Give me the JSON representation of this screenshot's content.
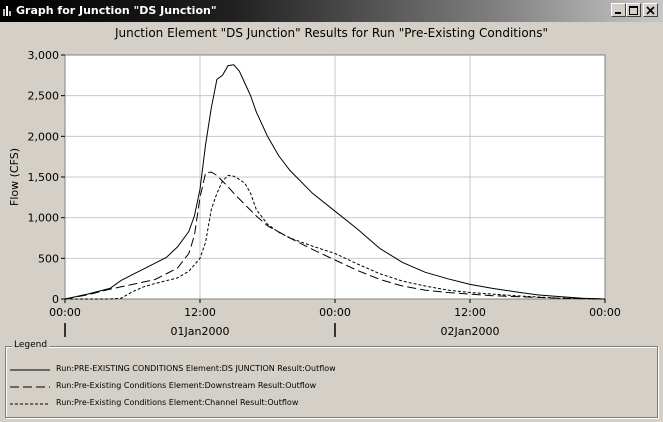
{
  "window": {
    "title": "Graph for Junction \"DS Junction\"",
    "icon": "bar-chart-icon",
    "controls": [
      "minimize-icon",
      "maximize-icon",
      "close-icon"
    ]
  },
  "chart_data": {
    "type": "line",
    "title": "Junction Element \"DS Junction\" Results for Run \"Pre-Existing Conditions\"",
    "ylabel": "Flow (CFS)",
    "xlabel": "",
    "ylim": [
      0,
      3000
    ],
    "xlim_hours": [
      0,
      48
    ],
    "grid": true,
    "y_ticks": [
      {
        "value": 0,
        "label": "0"
      },
      {
        "value": 500,
        "label": "500"
      },
      {
        "value": 1000,
        "label": "1,000"
      },
      {
        "value": 1500,
        "label": "1,500"
      },
      {
        "value": 2000,
        "label": "2,000"
      },
      {
        "value": 2500,
        "label": "2,500"
      },
      {
        "value": 3000,
        "label": "3,000"
      }
    ],
    "x_ticks": [
      {
        "value": 0,
        "label": "00:00"
      },
      {
        "value": 12,
        "label": "12:00"
      },
      {
        "value": 24,
        "label": "00:00"
      },
      {
        "value": 36,
        "label": "12:00"
      },
      {
        "value": 48,
        "label": "00:00"
      }
    ],
    "date_labels": [
      {
        "value": 12,
        "label": "01Jan2000"
      },
      {
        "value": 36,
        "label": "02Jan2000"
      }
    ],
    "date_dividers": [
      0,
      24
    ],
    "series": [
      {
        "name": "Run:PRE-EXISTING CONDITIONS Element:DS JUNCTION Result:Outflow",
        "dash": "solid",
        "x": [
          0,
          2,
          4,
          5,
          6,
          7,
          8,
          9,
          10,
          11,
          11.5,
          12,
          12.5,
          13,
          13.5,
          14,
          14.5,
          15,
          15.5,
          16,
          16.5,
          17,
          18,
          19,
          20,
          22,
          24,
          26,
          28,
          30,
          32,
          34,
          36,
          38,
          40,
          42,
          44,
          46,
          48
        ],
        "y": [
          0,
          60,
          130,
          230,
          300,
          370,
          440,
          510,
          640,
          830,
          1020,
          1350,
          1900,
          2350,
          2700,
          2750,
          2870,
          2880,
          2800,
          2650,
          2500,
          2300,
          2000,
          1760,
          1580,
          1300,
          1080,
          860,
          620,
          450,
          330,
          250,
          180,
          130,
          90,
          50,
          30,
          10,
          0
        ]
      },
      {
        "name": "Run:Pre-Existing Conditions Element:Downstream Result:Outflow",
        "dash": "long-dash",
        "x": [
          0,
          2,
          4,
          5,
          6,
          8,
          10,
          11,
          11.5,
          12,
          12.5,
          13,
          13.5,
          14,
          14.5,
          15,
          16,
          17,
          18,
          20,
          22,
          24,
          26,
          28,
          30,
          32,
          34,
          36,
          38,
          40,
          42,
          44,
          46,
          48
        ],
        "y": [
          0,
          50,
          120,
          150,
          180,
          240,
          380,
          560,
          780,
          1250,
          1550,
          1560,
          1520,
          1450,
          1380,
          1300,
          1160,
          1020,
          900,
          750,
          610,
          480,
          350,
          240,
          160,
          110,
          80,
          60,
          40,
          30,
          20,
          10,
          5,
          0
        ]
      },
      {
        "name": "Run:Pre-Existing Conditions Element:Channel Result:Outflow",
        "dash": "short-dash",
        "x": [
          0,
          4,
          5,
          6,
          7,
          8,
          10,
          11,
          12,
          12.5,
          13,
          13.5,
          14,
          14.5,
          15,
          15.5,
          16,
          16.5,
          17,
          18,
          19,
          20,
          22,
          24,
          26,
          28,
          30,
          32,
          34,
          36,
          38,
          40,
          42,
          44,
          46,
          48
        ],
        "y": [
          0,
          0,
          10,
          90,
          150,
          190,
          260,
          340,
          500,
          700,
          1100,
          1300,
          1450,
          1520,
          1510,
          1470,
          1420,
          1300,
          1100,
          920,
          820,
          750,
          650,
          560,
          430,
          310,
          220,
          160,
          110,
          80,
          60,
          40,
          25,
          10,
          5,
          0
        ]
      }
    ]
  },
  "legend": {
    "title": "Legend"
  }
}
